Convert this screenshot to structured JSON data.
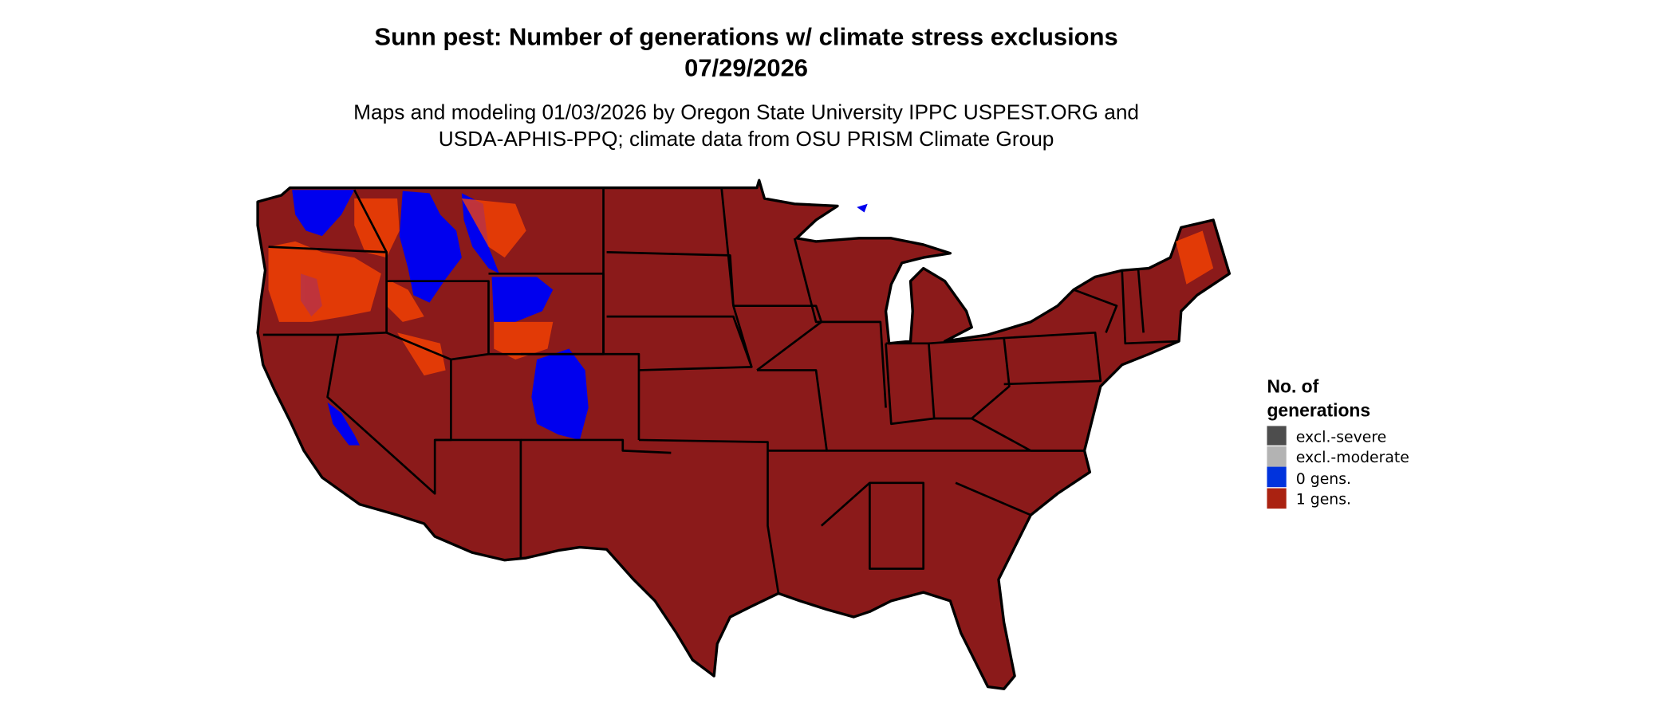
{
  "title": {
    "line1": "Sunn pest: Number of generations w/ climate stress exclusions",
    "line2": "07/29/2026"
  },
  "subtitle": {
    "line1": "Maps and modeling 01/03/2026 by Oregon State University IPPC USPEST.ORG and",
    "line2": "USDA-APHIS-PPQ; climate data from OSU PRISM Climate Group"
  },
  "legend": {
    "title_line1": "No. of",
    "title_line2": "generations",
    "items": [
      {
        "label": "excl.-severe",
        "color": "#4d4d4d"
      },
      {
        "label": "excl.-moderate",
        "color": "#b3b3b3"
      },
      {
        "label": "0 gens.",
        "color": "#0033dd"
      },
      {
        "label": "1 gens.",
        "color": "#aa2211"
      }
    ]
  },
  "map": {
    "region": "Contiguous United States",
    "fill_color": "#8b1a1a",
    "zero_gens_color": "#0000ee",
    "transition_color": "#ff4500"
  }
}
